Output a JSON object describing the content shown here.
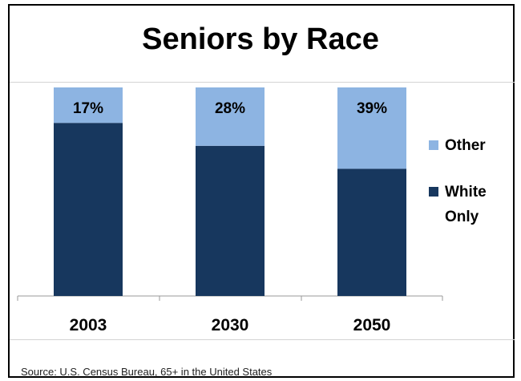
{
  "title": "Seniors by Race",
  "source": "Source: U.S. Census Bureau, 65+ in the United States",
  "colors": {
    "white_only": "#17375e",
    "other": "#8db4e2"
  },
  "chart_data": {
    "type": "bar",
    "stacked": true,
    "categories": [
      "2003",
      "2030",
      "2050"
    ],
    "series": [
      {
        "name": "White Only",
        "values": [
          83,
          72,
          61
        ]
      },
      {
        "name": "Other",
        "values": [
          17,
          28,
          39
        ]
      }
    ],
    "data_labels": [
      "17%",
      "28%",
      "39%"
    ],
    "legend": [
      "Other",
      "White Only"
    ],
    "legend_position": "right",
    "ylim": [
      0,
      100
    ],
    "grid": false
  }
}
